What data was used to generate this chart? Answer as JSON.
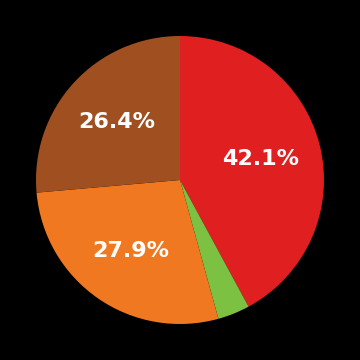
{
  "slices": [
    42.1,
    3.6,
    27.9,
    26.4
  ],
  "colors": [
    "#e02020",
    "#7dc142",
    "#f07820",
    "#a05020"
  ],
  "startangle": 90,
  "background_color": "#000000",
  "text_color": "#ffffff",
  "text_fontsize": 16,
  "text_fontweight": "bold",
  "label_info": [
    {
      "idx": 0,
      "label": "42.1%",
      "r": 0.58
    },
    {
      "idx": 1,
      "label": "",
      "r": 0.7
    },
    {
      "idx": 2,
      "label": "27.9%",
      "r": 0.6
    },
    {
      "idx": 3,
      "label": "26.4%",
      "r": 0.6
    }
  ]
}
